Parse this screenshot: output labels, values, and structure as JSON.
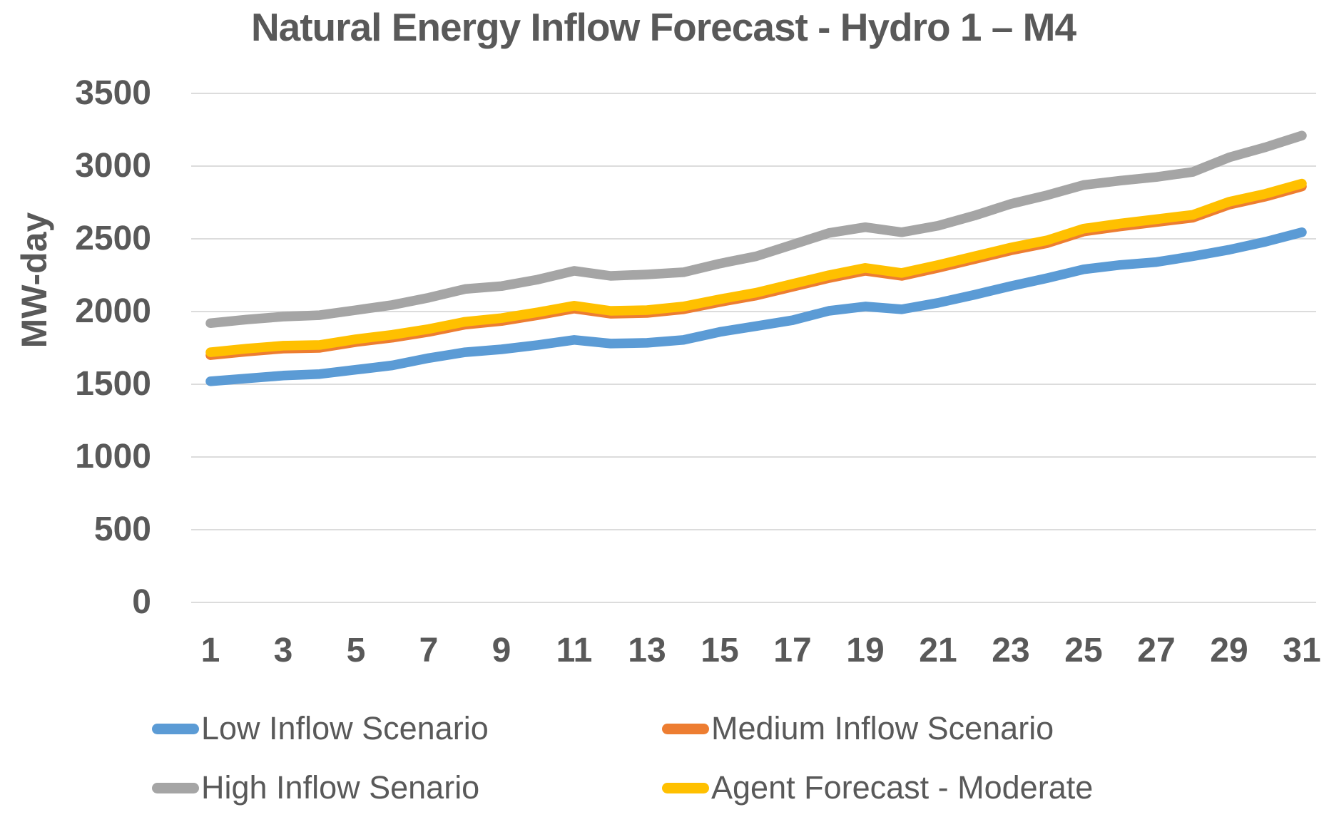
{
  "chart_data": {
    "type": "line",
    "title": "Natural Energy Inflow Forecast - Hydro 1 – M4",
    "xlabel": "",
    "ylabel": "MW-day",
    "ylim": [
      0,
      3500
    ],
    "yticks": [
      0,
      500,
      1000,
      1500,
      2000,
      2500,
      3000,
      3500
    ],
    "xticks": [
      1,
      3,
      5,
      7,
      9,
      11,
      13,
      15,
      17,
      19,
      21,
      23,
      25,
      27,
      29,
      31
    ],
    "x": [
      1,
      2,
      3,
      4,
      5,
      6,
      7,
      8,
      9,
      10,
      11,
      12,
      13,
      14,
      15,
      16,
      17,
      18,
      19,
      20,
      21,
      22,
      23,
      24,
      25,
      26,
      27,
      28,
      29,
      30,
      31
    ],
    "grid": true,
    "grid_color": "#DCDCDC",
    "text_color": "#595959",
    "legend_position": "bottom",
    "series": [
      {
        "name": "Low Inflow Scenario",
        "color": "#5B9BD5",
        "values": [
          1520,
          1540,
          1560,
          1570,
          1600,
          1630,
          1680,
          1720,
          1740,
          1770,
          1805,
          1780,
          1785,
          1805,
          1860,
          1900,
          1940,
          2005,
          2035,
          2015,
          2060,
          2115,
          2175,
          2230,
          2290,
          2320,
          2340,
          2380,
          2425,
          2480,
          2545
        ]
      },
      {
        "name": "Medium Inflow Scenario",
        "color": "#ED7D31",
        "values": [
          1700,
          1725,
          1745,
          1750,
          1790,
          1820,
          1860,
          1910,
          1935,
          1975,
          2020,
          1985,
          1990,
          2015,
          2065,
          2110,
          2170,
          2230,
          2280,
          2245,
          2300,
          2360,
          2420,
          2470,
          2550,
          2585,
          2615,
          2645,
          2735,
          2790,
          2860
        ]
      },
      {
        "name": "High Inflow Senario",
        "color": "#A5A5A5",
        "values": [
          1920,
          1945,
          1965,
          1975,
          2010,
          2045,
          2095,
          2155,
          2175,
          2220,
          2280,
          2245,
          2255,
          2270,
          2330,
          2380,
          2460,
          2540,
          2580,
          2545,
          2590,
          2660,
          2740,
          2800,
          2870,
          2900,
          2925,
          2960,
          3060,
          3130,
          3210
        ]
      },
      {
        "name": "Agent Forecast - Moderate",
        "color": "#FFC000",
        "values": [
          1720,
          1745,
          1765,
          1770,
          1810,
          1840,
          1880,
          1930,
          1955,
          1995,
          2040,
          2005,
          2010,
          2035,
          2085,
          2130,
          2190,
          2250,
          2300,
          2265,
          2320,
          2380,
          2440,
          2490,
          2570,
          2605,
          2635,
          2665,
          2755,
          2810,
          2880
        ]
      }
    ]
  }
}
